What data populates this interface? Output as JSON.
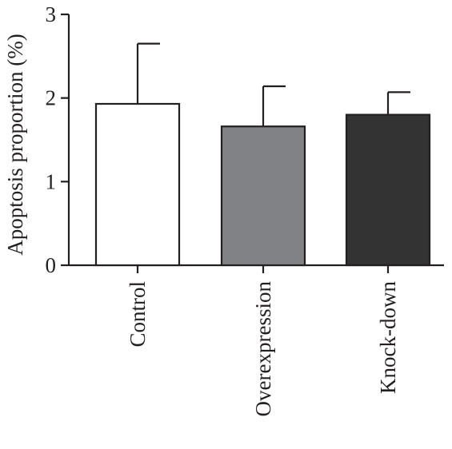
{
  "chart_data": {
    "type": "bar",
    "title": "",
    "xlabel": "",
    "ylabel": "Apoptosis proportion (%)",
    "ylim": [
      0,
      3
    ],
    "yticks": [
      "0",
      "1",
      "2",
      "3"
    ],
    "categories": [
      "Control",
      "Overexpression",
      "Knock-down"
    ],
    "values": [
      1.93,
      1.66,
      1.8
    ],
    "errors": [
      0.72,
      0.48,
      0.27
    ],
    "colors": [
      "#ffffff",
      "#808285",
      "#333333"
    ],
    "grid": false,
    "legend": "none"
  }
}
